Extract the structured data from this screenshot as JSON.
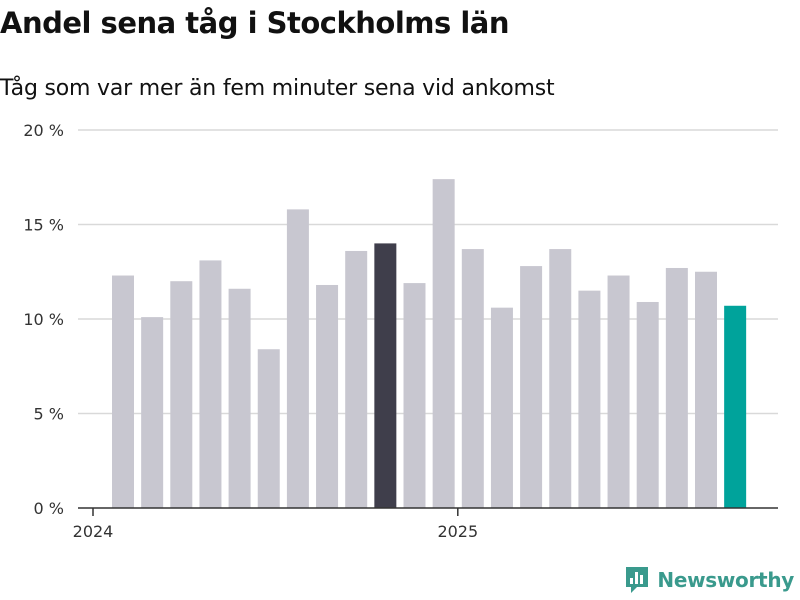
{
  "title": "Andel sena tåg i Stockholms län",
  "subtitle": "Tåg som var mer än fem minuter sena vid ankomst",
  "brand": "Newsworthy",
  "colors": {
    "bar": "#c8c7d0",
    "highlight": "#3f3e4b",
    "latest": "#00a39b",
    "grid": "#d9d9d9",
    "axis": "#333333",
    "brand": "#3a9a8d"
  },
  "chart_data": {
    "type": "bar",
    "title": "Andel sena tåg i Stockholms län",
    "subtitle": "Tåg som var mer än fem minuter sena vid ankomst",
    "xlabel": "",
    "ylabel": "",
    "ylim": [
      0,
      20
    ],
    "yticks": [
      {
        "value": 0,
        "label": "0 %"
      },
      {
        "value": 5,
        "label": "5 %"
      },
      {
        "value": 10,
        "label": "10 %"
      },
      {
        "value": 15,
        "label": "15 %"
      },
      {
        "value": 20,
        "label": "20 %"
      }
    ],
    "xticks": [
      {
        "index": 0,
        "label": "2024"
      },
      {
        "index": 12,
        "label": "2025"
      }
    ],
    "values": [
      12.3,
      10.1,
      12.0,
      13.1,
      11.6,
      8.4,
      15.8,
      11.8,
      13.6,
      14.0,
      11.9,
      17.4,
      13.7,
      10.6,
      12.8,
      13.7,
      11.5,
      12.3,
      10.9,
      12.7,
      12.5,
      10.7
    ],
    "highlight_index": 9,
    "latest_index": 21,
    "grid": true
  }
}
